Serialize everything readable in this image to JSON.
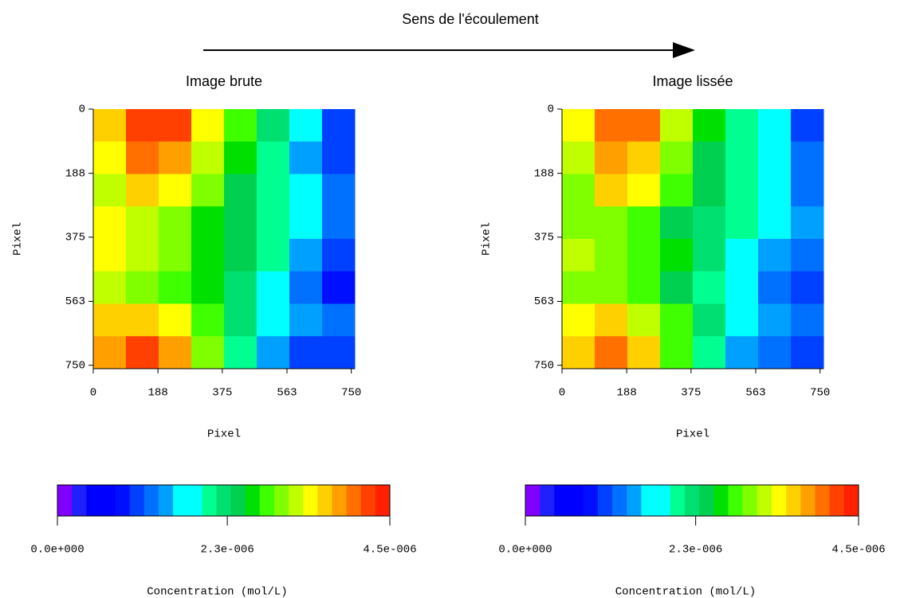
{
  "title": "Sens de l'écoulement",
  "chart_data": [
    {
      "type": "heatmap",
      "title": "Image brute",
      "xlabel": "Pixel",
      "ylabel": "Pixel",
      "xlim": [
        0,
        760
      ],
      "ylim": [
        0,
        760
      ],
      "xticks": [
        0,
        188,
        375,
        563,
        750
      ],
      "yticks": [
        0,
        188,
        375,
        563,
        750
      ],
      "z": [
        [
          3.6e-06,
          4.3e-06,
          4.2e-06,
          3.5e-06,
          2.8e-06,
          2.2e-06,
          1.6e-06,
          1e-06
        ],
        [
          3.5e-06,
          4e-06,
          3.9e-06,
          3.3e-06,
          2.6e-06,
          2e-06,
          1.5e-06,
          1e-06
        ],
        [
          3.2e-06,
          3.7e-06,
          3.5e-06,
          3e-06,
          2.5e-06,
          2e-06,
          1.6e-06,
          1.2e-06
        ],
        [
          3.4e-06,
          3.2e-06,
          3e-06,
          2.7e-06,
          2.4e-06,
          2.1e-06,
          1.7e-06,
          1.3e-06
        ],
        [
          3.5e-06,
          3.3e-06,
          3e-06,
          2.7e-06,
          2.4e-06,
          2e-06,
          1.5e-06,
          1.1e-06
        ],
        [
          3.3e-06,
          3.1e-06,
          2.9e-06,
          2.6e-06,
          2.2e-06,
          1.7e-06,
          1.3e-06,
          9e-07
        ],
        [
          3.6e-06,
          3.7e-06,
          3.4e-06,
          2.9e-06,
          2.3e-06,
          1.8e-06,
          1.5e-06,
          1.2e-06
        ],
        [
          3.8e-06,
          4.2e-06,
          3.9e-06,
          3e-06,
          2e-06,
          1.4e-06,
          1.1e-06,
          1e-06
        ]
      ],
      "colorbar": {
        "label": "Concentration (mol/L)",
        "lim": [
          0,
          4.5e-06
        ],
        "ticks": [
          {
            "value": 0,
            "label": "0.0e+000"
          },
          {
            "value": 2.3e-06,
            "label": "2.3e-006"
          },
          {
            "value": 4.5e-06,
            "label": "4.5e-006"
          }
        ],
        "colors": [
          "#7f00ff",
          "#2020ff",
          "#0000ff",
          "#0000ff",
          "#0010ff",
          "#0040ff",
          "#0070ff",
          "#00a0ff",
          "#00ffff",
          "#00ffff",
          "#00ff90",
          "#00e070",
          "#00d050",
          "#00e000",
          "#40ff00",
          "#80ff00",
          "#c0ff00",
          "#ffff00",
          "#ffd000",
          "#ffa000",
          "#ff7000",
          "#ff4000",
          "#ff2000"
        ]
      }
    },
    {
      "type": "heatmap",
      "title": "Image lissée",
      "xlabel": "Pixel",
      "ylabel": "Pixel",
      "xlim": [
        0,
        760
      ],
      "ylim": [
        0,
        760
      ],
      "xticks": [
        0,
        188,
        375,
        563,
        750
      ],
      "yticks": [
        0,
        188,
        375,
        563,
        750
      ],
      "z": [
        [
          3.4e-06,
          4.1e-06,
          4e-06,
          3.3e-06,
          2.6e-06,
          2.1e-06,
          1.6e-06,
          1.1e-06
        ],
        [
          3.3e-06,
          3.9e-06,
          3.7e-06,
          3e-06,
          2.4e-06,
          2e-06,
          1.6e-06,
          1.2e-06
        ],
        [
          3.1e-06,
          3.6e-06,
          3.4e-06,
          2.8e-06,
          2.4e-06,
          2.1e-06,
          1.7e-06,
          1.3e-06
        ],
        [
          3e-06,
          3e-06,
          2.8e-06,
          2.5e-06,
          2.3e-06,
          2e-06,
          1.7e-06,
          1.4e-06
        ],
        [
          3.2e-06,
          3.1e-06,
          2.9e-06,
          2.6e-06,
          2.3e-06,
          1.9e-06,
          1.5e-06,
          1.2e-06
        ],
        [
          3.1e-06,
          3e-06,
          2.8e-06,
          2.5e-06,
          2.1e-06,
          1.7e-06,
          1.3e-06,
          1e-06
        ],
        [
          3.5e-06,
          3.6e-06,
          3.3e-06,
          2.8e-06,
          2.2e-06,
          1.8e-06,
          1.5e-06,
          1.3e-06
        ],
        [
          3.7e-06,
          4.1e-06,
          3.7e-06,
          2.9e-06,
          2e-06,
          1.5e-06,
          1.2e-06,
          1.1e-06
        ]
      ],
      "colorbar": {
        "label": "Concentration (mol/L)",
        "lim": [
          0,
          4.5e-06
        ],
        "ticks": [
          {
            "value": 0,
            "label": "0.0e+000"
          },
          {
            "value": 2.3e-06,
            "label": "2.3e-006"
          },
          {
            "value": 4.5e-06,
            "label": "4.5e-006"
          }
        ],
        "colors": [
          "#7f00ff",
          "#2020ff",
          "#0000ff",
          "#0000ff",
          "#0010ff",
          "#0040ff",
          "#0070ff",
          "#00a0ff",
          "#00ffff",
          "#00ffff",
          "#00ff90",
          "#00e070",
          "#00d050",
          "#00e000",
          "#40ff00",
          "#80ff00",
          "#c0ff00",
          "#ffff00",
          "#ffd000",
          "#ffa000",
          "#ff7000",
          "#ff4000",
          "#ff2000"
        ]
      }
    }
  ]
}
